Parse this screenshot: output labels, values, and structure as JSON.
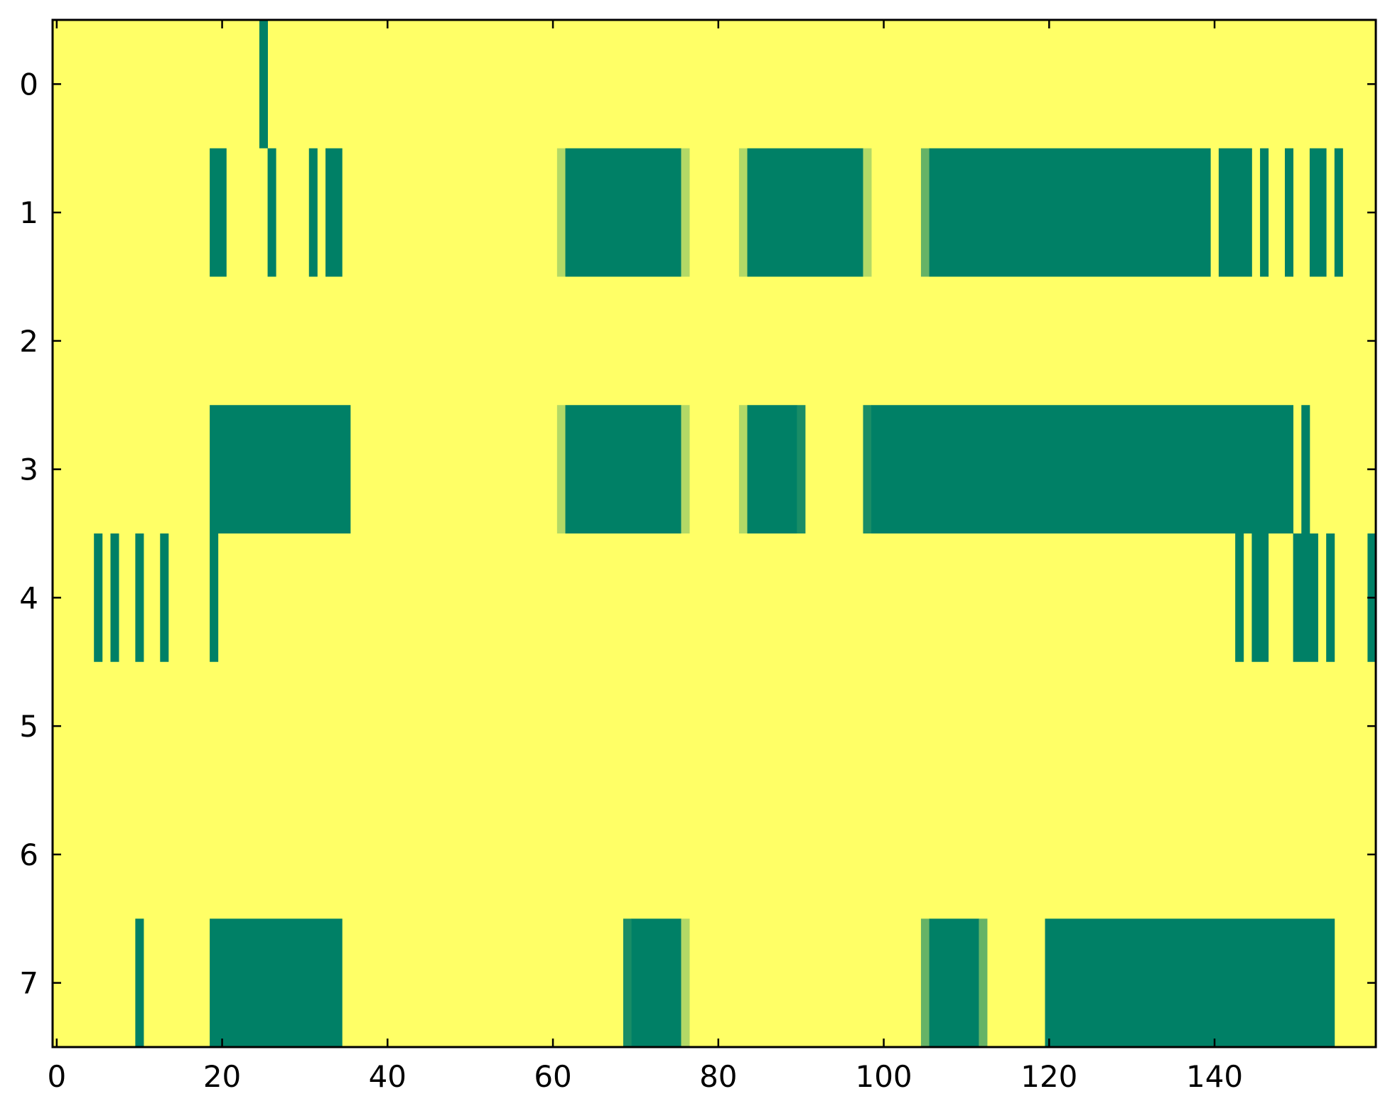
{
  "chart_data": {
    "type": "heatmap",
    "title": "",
    "xlabel": "",
    "ylabel": "",
    "rows": 8,
    "columns": 160,
    "xlim": [
      -0.5,
      159.5
    ],
    "ylim": [
      -0.5,
      7.5
    ],
    "y_inverted": true,
    "grid": false,
    "x_ticks": [
      0,
      20,
      40,
      60,
      80,
      100,
      120,
      140
    ],
    "y_ticks": [
      0,
      1,
      2,
      3,
      4,
      5,
      6,
      7
    ],
    "colors": {
      "background": "#FFFF66",
      "full": "#008066",
      "mid": "#1A8D66",
      "mid2": "#66B366",
      "light": "#B3D966"
    },
    "segments": [
      {
        "row": 0,
        "start": 25,
        "end": 25,
        "level": "full"
      },
      {
        "row": 1,
        "start": 19,
        "end": 20,
        "level": "full"
      },
      {
        "row": 1,
        "start": 26,
        "end": 26,
        "level": "full"
      },
      {
        "row": 1,
        "start": 31,
        "end": 31,
        "level": "full"
      },
      {
        "row": 1,
        "start": 33,
        "end": 34,
        "level": "full"
      },
      {
        "row": 1,
        "start": 61,
        "end": 61,
        "level": "light"
      },
      {
        "row": 1,
        "start": 62,
        "end": 75,
        "level": "full"
      },
      {
        "row": 1,
        "start": 76,
        "end": 76,
        "level": "light"
      },
      {
        "row": 1,
        "start": 83,
        "end": 83,
        "level": "light"
      },
      {
        "row": 1,
        "start": 84,
        "end": 97,
        "level": "full"
      },
      {
        "row": 1,
        "start": 98,
        "end": 98,
        "level": "light"
      },
      {
        "row": 1,
        "start": 105,
        "end": 105,
        "level": "mid2"
      },
      {
        "row": 1,
        "start": 106,
        "end": 139,
        "level": "full"
      },
      {
        "row": 1,
        "start": 141,
        "end": 144,
        "level": "full"
      },
      {
        "row": 1,
        "start": 146,
        "end": 146,
        "level": "full"
      },
      {
        "row": 1,
        "start": 149,
        "end": 149,
        "level": "full"
      },
      {
        "row": 1,
        "start": 152,
        "end": 153,
        "level": "full"
      },
      {
        "row": 1,
        "start": 155,
        "end": 155,
        "level": "full"
      },
      {
        "row": 3,
        "start": 19,
        "end": 35,
        "level": "full"
      },
      {
        "row": 3,
        "start": 61,
        "end": 61,
        "level": "light"
      },
      {
        "row": 3,
        "start": 62,
        "end": 75,
        "level": "full"
      },
      {
        "row": 3,
        "start": 76,
        "end": 76,
        "level": "light"
      },
      {
        "row": 3,
        "start": 83,
        "end": 83,
        "level": "light"
      },
      {
        "row": 3,
        "start": 84,
        "end": 89,
        "level": "full"
      },
      {
        "row": 3,
        "start": 90,
        "end": 90,
        "level": "mid"
      },
      {
        "row": 3,
        "start": 98,
        "end": 98,
        "level": "mid"
      },
      {
        "row": 3,
        "start": 99,
        "end": 149,
        "level": "full"
      },
      {
        "row": 3,
        "start": 151,
        "end": 151,
        "level": "full"
      },
      {
        "row": 4,
        "start": 5,
        "end": 5,
        "level": "full"
      },
      {
        "row": 4,
        "start": 7,
        "end": 7,
        "level": "full"
      },
      {
        "row": 4,
        "start": 10,
        "end": 10,
        "level": "full"
      },
      {
        "row": 4,
        "start": 13,
        "end": 13,
        "level": "full"
      },
      {
        "row": 4,
        "start": 19,
        "end": 19,
        "level": "full"
      },
      {
        "row": 4,
        "start": 143,
        "end": 143,
        "level": "full"
      },
      {
        "row": 4,
        "start": 145,
        "end": 146,
        "level": "full"
      },
      {
        "row": 4,
        "start": 150,
        "end": 152,
        "level": "full"
      },
      {
        "row": 4,
        "start": 154,
        "end": 154,
        "level": "full"
      },
      {
        "row": 4,
        "start": 159,
        "end": 159,
        "level": "full"
      },
      {
        "row": 7,
        "start": 10,
        "end": 10,
        "level": "full"
      },
      {
        "row": 7,
        "start": 19,
        "end": 34,
        "level": "full"
      },
      {
        "row": 7,
        "start": 69,
        "end": 69,
        "level": "mid"
      },
      {
        "row": 7,
        "start": 70,
        "end": 75,
        "level": "full"
      },
      {
        "row": 7,
        "start": 76,
        "end": 76,
        "level": "light"
      },
      {
        "row": 7,
        "start": 105,
        "end": 105,
        "level": "mid2"
      },
      {
        "row": 7,
        "start": 106,
        "end": 111,
        "level": "full"
      },
      {
        "row": 7,
        "start": 112,
        "end": 112,
        "level": "mid2"
      },
      {
        "row": 7,
        "start": 120,
        "end": 154,
        "level": "full"
      }
    ]
  }
}
